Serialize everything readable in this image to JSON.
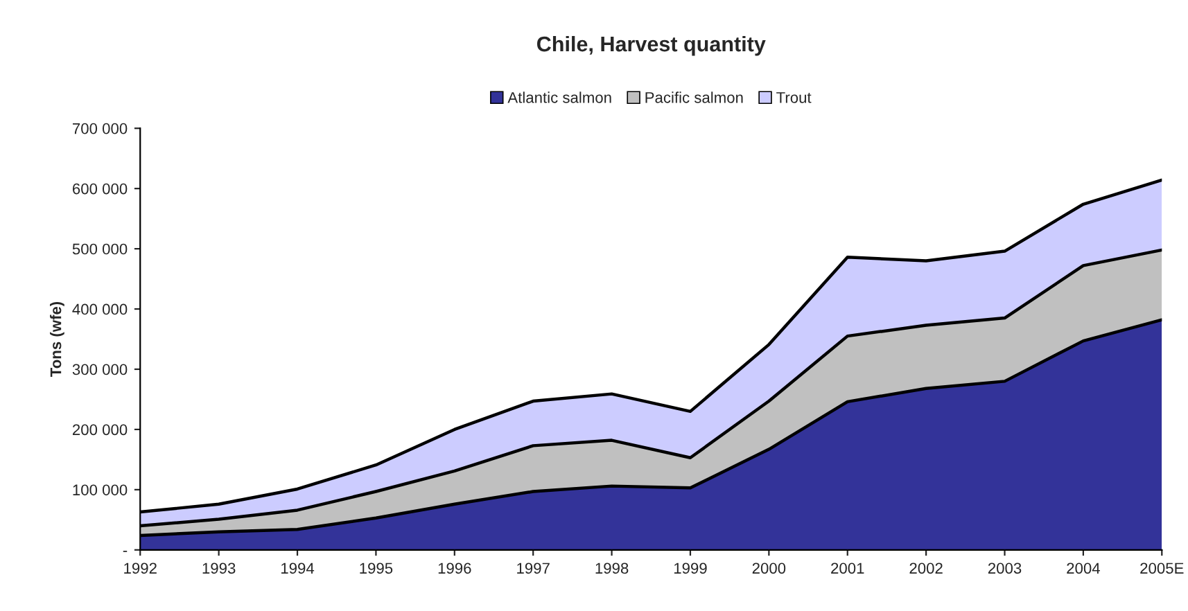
{
  "chart_data": {
    "type": "area",
    "stacked": true,
    "title": "Chile, Harvest quantity",
    "ylabel": "Tons (wfe)",
    "categories": [
      "1992",
      "1993",
      "1994",
      "1995",
      "1996",
      "1997",
      "1998",
      "1999",
      "2000",
      "2001",
      "2002",
      "2003",
      "2004",
      "2005E"
    ],
    "series": [
      {
        "name": "Atlantic salmon",
        "color": "#333399",
        "values": [
          24000,
          30000,
          34000,
          53000,
          76000,
          97000,
          106000,
          103000,
          167000,
          246000,
          268000,
          280000,
          347000,
          382000
        ]
      },
      {
        "name": "Pacific salmon",
        "color": "#c0c0c0",
        "values": [
          16000,
          21000,
          32000,
          44000,
          55000,
          76000,
          76000,
          50000,
          80000,
          109000,
          105000,
          105000,
          125000,
          116000
        ]
      },
      {
        "name": "Trout",
        "color": "#ccccff",
        "values": [
          23000,
          25000,
          35000,
          44000,
          69000,
          74000,
          77000,
          77000,
          94000,
          131000,
          107000,
          111000,
          102000,
          116000
        ]
      }
    ],
    "ylim": [
      0,
      700000
    ],
    "yticks": [
      {
        "value": 0,
        "label": "-"
      },
      {
        "value": 100000,
        "label": "100 000"
      },
      {
        "value": 200000,
        "label": "200 000"
      },
      {
        "value": 300000,
        "label": "300 000"
      },
      {
        "value": 400000,
        "label": "400 000"
      },
      {
        "value": 500000,
        "label": "500 000"
      },
      {
        "value": 600000,
        "label": "600 000"
      },
      {
        "value": 700000,
        "label": "700 000"
      }
    ],
    "grid": false,
    "legend": "top"
  }
}
